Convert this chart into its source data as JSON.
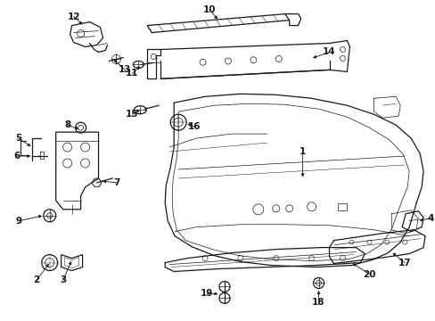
{
  "bg_color": "#ffffff",
  "line_color": "#1a1a1a",
  "fig_width": 4.89,
  "fig_height": 3.6,
  "dpi": 100,
  "font_size": 7.5,
  "arrow_lw": 0.6,
  "lw_main": 0.9,
  "lw_thin": 0.5
}
